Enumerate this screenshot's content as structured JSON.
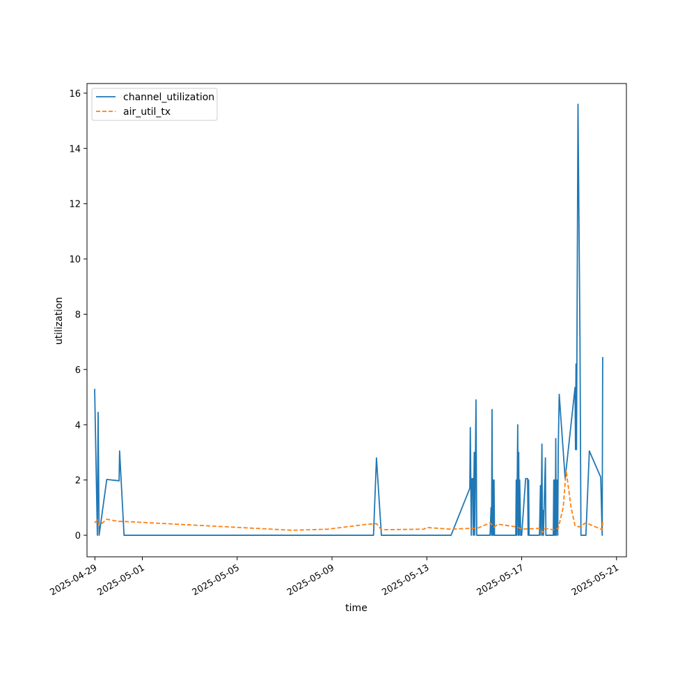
{
  "chart_data": {
    "type": "line",
    "xlabel": "time",
    "ylabel": "utilization",
    "xlim": [
      "2025-04-28T16:00",
      "2025-05-21T10:00"
    ],
    "ylim": [
      -0.78,
      16.35
    ],
    "x_ticks": [
      "2025-04-29",
      "2025-05-01",
      "2025-05-05",
      "2025-05-09",
      "2025-05-13",
      "2025-05-17",
      "2025-05-21"
    ],
    "y_ticks": [
      0,
      2,
      4,
      6,
      8,
      10,
      12,
      14,
      16
    ],
    "legend_position": "top-left",
    "grid": false,
    "series": [
      {
        "name": "channel_utilization",
        "color": "#1f77b4",
        "style": "solid",
        "points": [
          [
            "2025-04-28T23:45",
            5.3
          ],
          [
            "2025-04-29T02:30",
            0.0
          ],
          [
            "2025-04-29T03:15",
            4.45
          ],
          [
            "2025-04-29T04:15",
            0.0
          ],
          [
            "2025-04-29T12:00",
            2.02
          ],
          [
            "2025-04-30T00:30",
            1.97
          ],
          [
            "2025-04-30T01:00",
            3.05
          ],
          [
            "2025-04-30T05:30",
            0.0
          ],
          [
            "2025-05-10T18:00",
            0.0
          ],
          [
            "2025-05-10T21:00",
            2.8
          ],
          [
            "2025-05-11T02:00",
            0.0
          ],
          [
            "2025-05-14T00:30",
            0.0
          ],
          [
            "2025-05-14T19:30",
            1.7
          ],
          [
            "2025-05-14T20:00",
            3.9
          ],
          [
            "2025-05-14T21:00",
            0.0
          ],
          [
            "2025-05-14T21:30",
            2.05
          ],
          [
            "2025-05-14T22:30",
            2.05
          ],
          [
            "2025-05-14T23:00",
            0.0
          ],
          [
            "2025-05-15T00:00",
            3.0
          ],
          [
            "2025-05-15T00:30",
            0.0
          ],
          [
            "2025-05-15T01:45",
            4.9
          ],
          [
            "2025-05-15T02:30",
            0.0
          ],
          [
            "2025-05-15T03:00",
            0.0
          ],
          [
            "2025-05-15T13:00",
            0.0
          ],
          [
            "2025-05-15T16:00",
            0.0
          ],
          [
            "2025-05-15T17:00",
            1.0
          ],
          [
            "2025-05-15T17:30",
            0.0
          ],
          [
            "2025-05-15T18:00",
            4.55
          ],
          [
            "2025-05-15T18:30",
            0.0
          ],
          [
            "2025-05-15T19:00",
            2.0
          ],
          [
            "2025-05-15T19:30",
            0.0
          ],
          [
            "2025-05-15T20:00",
            2.0
          ],
          [
            "2025-05-15T20:30",
            0.0
          ],
          [
            "2025-05-16T18:00",
            0.0
          ],
          [
            "2025-05-16T18:30",
            2.0
          ],
          [
            "2025-05-16T19:00",
            0.0
          ],
          [
            "2025-05-16T20:00",
            4.0
          ],
          [
            "2025-05-16T20:30",
            0.0
          ],
          [
            "2025-05-16T21:00",
            3.0
          ],
          [
            "2025-05-16T21:30",
            0.0
          ],
          [
            "2025-05-16T22:00",
            2.0
          ],
          [
            "2025-05-16T23:00",
            0.0
          ],
          [
            "2025-05-17T00:00",
            0.0
          ],
          [
            "2025-05-17T04:00",
            2.05
          ],
          [
            "2025-05-17T06:00",
            2.05
          ],
          [
            "2025-05-17T06:30",
            0.0
          ],
          [
            "2025-05-17T07:00",
            2.0
          ],
          [
            "2025-05-17T07:30",
            0.0
          ],
          [
            "2025-05-17T18:00",
            0.0
          ],
          [
            "2025-05-17T19:00",
            1.8
          ],
          [
            "2025-05-17T19:30",
            0.0
          ],
          [
            "2025-05-17T20:30",
            3.3
          ],
          [
            "2025-05-17T21:00",
            0.0
          ],
          [
            "2025-05-17T21:30",
            0.9
          ],
          [
            "2025-05-17T22:00",
            0.0
          ],
          [
            "2025-05-18T00:00",
            2.8
          ],
          [
            "2025-05-18T00:30",
            0.0
          ],
          [
            "2025-05-18T08:00",
            0.0
          ],
          [
            "2025-05-18T08:30",
            2.0
          ],
          [
            "2025-05-18T09:00",
            0.0
          ],
          [
            "2025-05-18T09:30",
            2.0
          ],
          [
            "2025-05-18T10:00",
            0.0
          ],
          [
            "2025-05-18T10:30",
            3.5
          ],
          [
            "2025-05-18T11:00",
            0.0
          ],
          [
            "2025-05-18T12:00",
            2.0
          ],
          [
            "2025-05-18T12:30",
            0.0
          ],
          [
            "2025-05-18T13:00",
            3.1
          ],
          [
            "2025-05-18T14:00",
            5.1
          ],
          [
            "2025-05-18T20:00",
            2.05
          ],
          [
            "2025-05-19T06:00",
            5.35
          ],
          [
            "2025-05-19T06:30",
            3.1
          ],
          [
            "2025-05-19T07:00",
            6.2
          ],
          [
            "2025-05-19T07:30",
            3.1
          ],
          [
            "2025-05-19T09:00",
            15.6
          ],
          [
            "2025-05-19T11:00",
            7.1
          ],
          [
            "2025-05-19T12:00",
            0.0
          ],
          [
            "2025-05-19T17:00",
            0.0
          ],
          [
            "2025-05-19T20:30",
            3.05
          ],
          [
            "2025-05-20T08:00",
            2.1
          ],
          [
            "2025-05-20T09:30",
            0.0
          ],
          [
            "2025-05-20T10:00",
            6.45
          ]
        ]
      },
      {
        "name": "air_util_tx",
        "color": "#ff7f0e",
        "style": "dashed",
        "points": [
          [
            "2025-04-28T23:45",
            0.45
          ],
          [
            "2025-04-29T02:30",
            0.55
          ],
          [
            "2025-04-29T04:30",
            0.35
          ],
          [
            "2025-04-29T12:00",
            0.58
          ],
          [
            "2025-04-30T00:00",
            0.5
          ],
          [
            "2025-04-30T05:30",
            0.5
          ],
          [
            "2025-05-07T08:00",
            0.18
          ],
          [
            "2025-05-08T20:00",
            0.22
          ],
          [
            "2025-05-10T12:00",
            0.4
          ],
          [
            "2025-05-10T21:00",
            0.42
          ],
          [
            "2025-05-11T02:00",
            0.2
          ],
          [
            "2025-05-12T21:00",
            0.22
          ],
          [
            "2025-05-13T00:00",
            0.28
          ],
          [
            "2025-05-14T00:00",
            0.22
          ],
          [
            "2025-05-14T21:00",
            0.25
          ],
          [
            "2025-05-15T03:00",
            0.25
          ],
          [
            "2025-05-15T16:00",
            0.45
          ],
          [
            "2025-05-15T20:00",
            0.3
          ],
          [
            "2025-05-16T00:00",
            0.4
          ],
          [
            "2025-05-16T19:00",
            0.3
          ],
          [
            "2025-05-17T00:00",
            0.22
          ],
          [
            "2025-05-17T18:00",
            0.25
          ],
          [
            "2025-05-17T21:00",
            0.1
          ],
          [
            "2025-05-18T00:00",
            0.25
          ],
          [
            "2025-05-18T08:00",
            0.2
          ],
          [
            "2025-05-18T13:00",
            0.25
          ],
          [
            "2025-05-18T18:00",
            1.0
          ],
          [
            "2025-05-18T21:00",
            2.35
          ],
          [
            "2025-05-19T02:00",
            1.0
          ],
          [
            "2025-05-19T06:00",
            0.35
          ],
          [
            "2025-05-19T10:00",
            0.3
          ],
          [
            "2025-05-19T17:00",
            0.45
          ],
          [
            "2025-05-20T09:30",
            0.2
          ],
          [
            "2025-05-20T10:00",
            0.5
          ]
        ]
      }
    ]
  }
}
